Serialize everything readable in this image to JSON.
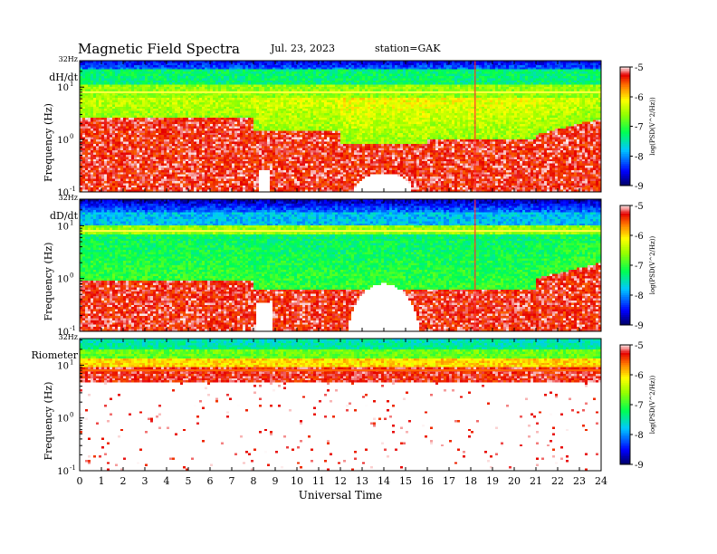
{
  "header": {
    "title": "Magnetic  Field  Spectra",
    "date": "Jul.  23, 2023",
    "station": "station=GAK"
  },
  "chart_data": [
    {
      "type": "heatmap",
      "panel_label": "dH/dt",
      "ylabel": "Frequency  (Hz)",
      "yaxis": "log",
      "ylim": [
        0.1,
        32
      ],
      "y_ticks": [
        {
          "base": "10",
          "exp": "-1",
          "value": 0.1
        },
        {
          "base": "10",
          "exp": "0",
          "value": 1
        },
        {
          "base": "10",
          "exp": "1",
          "value": 10
        },
        {
          "top_label": "32Hz",
          "value": 32
        }
      ],
      "color_scale": {
        "label": "log(PSD(V^2/Hz))",
        "range": [
          -9,
          -5
        ],
        "ticks": [
          "-5",
          "-6",
          "-7",
          "-8",
          "-9"
        ]
      },
      "features": {
        "description": "Red broadband below ~2 Hz 0-8 UT, green band above; white gap near 13-15 UT around 0.2-0.5 Hz",
        "line_freq_hz": 8,
        "spike_ut": [
          18.2
        ],
        "low_activity_windows_ut": [
          [
            8.2,
            8.8
          ],
          [
            12.6,
            15.3
          ]
        ]
      }
    },
    {
      "type": "heatmap",
      "panel_label": "dD/dt",
      "ylabel": "Frequency  (Hz)",
      "yaxis": "log",
      "ylim": [
        0.1,
        32
      ],
      "y_ticks": [
        {
          "base": "10",
          "exp": "-1",
          "value": 0.1
        },
        {
          "base": "10",
          "exp": "0",
          "value": 1
        },
        {
          "base": "10",
          "exp": "1",
          "value": 10
        },
        {
          "top_label": "32Hz",
          "value": 32
        }
      ],
      "color_scale": {
        "label": "log(PSD(V^2/Hz))",
        "range": [
          -9,
          -5
        ],
        "ticks": [
          "-5",
          "-6",
          "-7",
          "-8",
          "-9"
        ]
      },
      "features": {
        "description": "Red below ~0.6 Hz, green/cyan mid band, dark blue above ~15 Hz; dome of white 12.5-15.5 UT",
        "line_freq_hz": 8,
        "spike_ut": [
          18.2
        ],
        "low_activity_windows_ut": [
          [
            8.1,
            8.9
          ],
          [
            12.4,
            15.6
          ]
        ]
      }
    },
    {
      "type": "heatmap",
      "panel_label": "Riometer",
      "ylabel": "Frequency  (Hz)",
      "yaxis": "log",
      "ylim": [
        0.1,
        32
      ],
      "y_ticks": [
        {
          "base": "10",
          "exp": "-1",
          "value": 0.1
        },
        {
          "base": "10",
          "exp": "0",
          "value": 1
        },
        {
          "base": "10",
          "exp": "1",
          "value": 10
        },
        {
          "top_label": "32Hz",
          "value": 32
        }
      ],
      "color_scale": {
        "label": "log(PSD(V^2/Hz))",
        "range": [
          -9,
          -5
        ],
        "ticks": [
          "-5",
          "-6",
          "-7",
          "-8",
          "-9"
        ]
      },
      "features": {
        "description": "Green/cyan above ~15 Hz, yellow-red band 4-12 Hz, mostly white below 2 Hz with sparse red dots",
        "line_freq_hz": 8
      }
    }
  ],
  "xaxis": {
    "label": "Universal Time",
    "range": [
      0,
      24
    ],
    "ticks": [
      "0",
      "1",
      "2",
      "3",
      "4",
      "5",
      "6",
      "7",
      "8",
      "9",
      "10",
      "11",
      "12",
      "13",
      "14",
      "15",
      "16",
      "17",
      "18",
      "19",
      "20",
      "21",
      "22",
      "23",
      "24"
    ]
  }
}
